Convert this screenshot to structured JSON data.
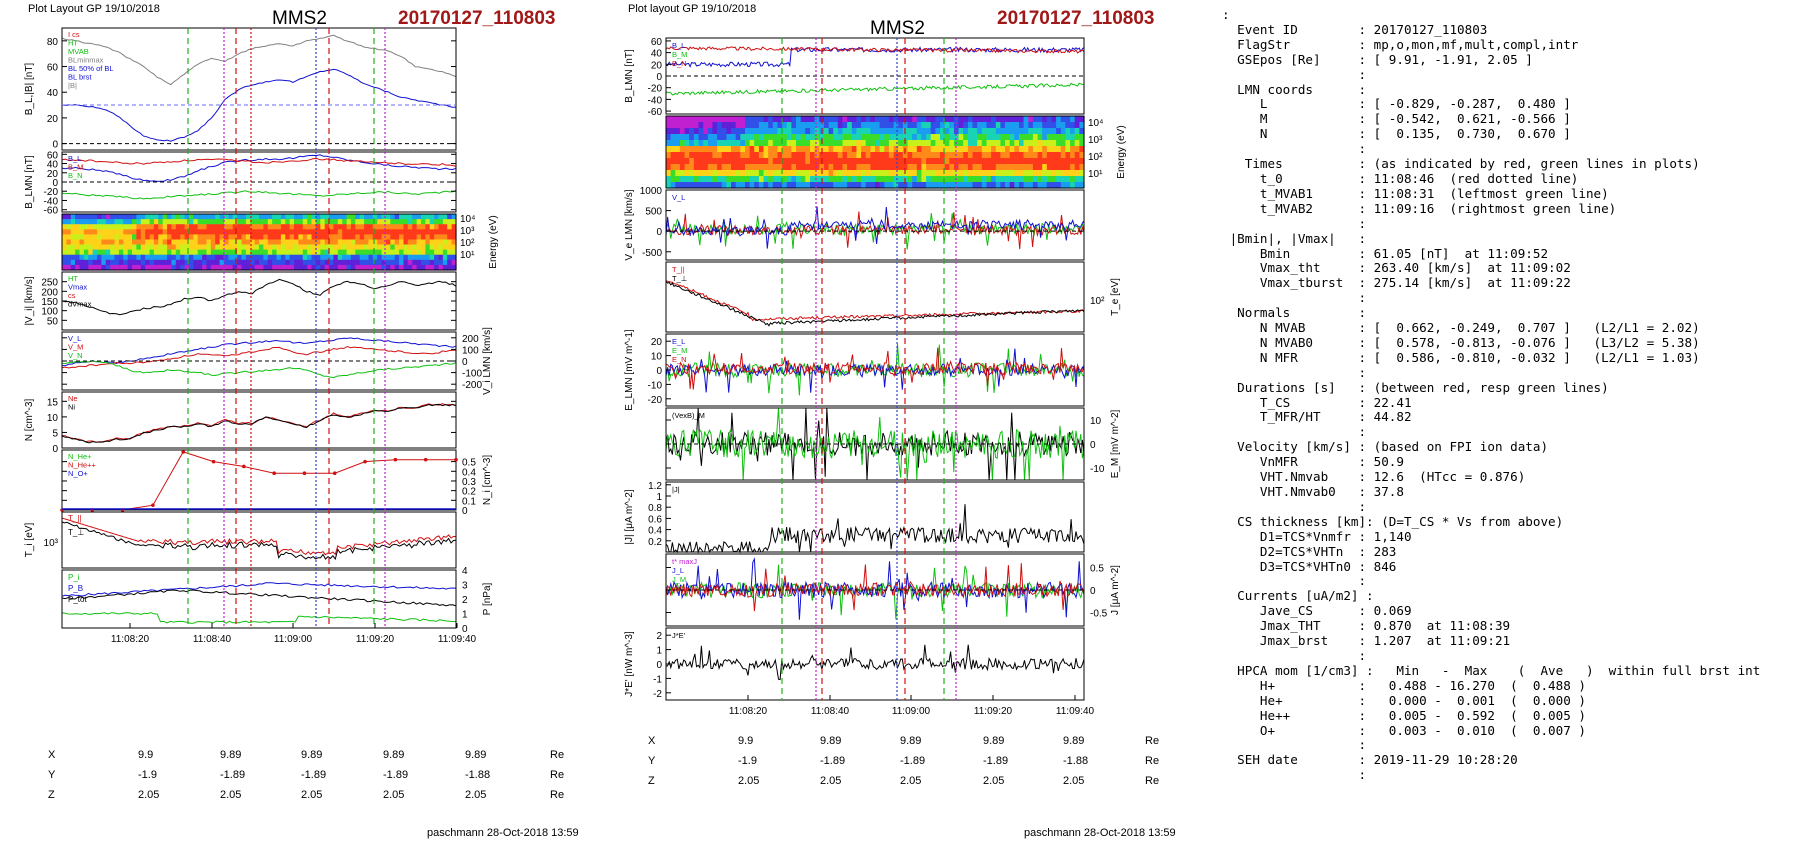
{
  "left": {
    "header_left": "Plot Layout GP 19/10/2018",
    "mms": "MMS2",
    "event": "20170127_110803",
    "footer": "paschmann 28-Oct-2018 13:59",
    "time_ticks": [
      "11:08:20",
      "11:08:40",
      "11:09:00",
      "11:09:20",
      "11:09:40"
    ],
    "coords": {
      "X": [
        "9.9",
        "9.89",
        "9.89",
        "9.89",
        "9.89"
      ],
      "Y": [
        "-1.9",
        "-1.89",
        "-1.89",
        "-1.89",
        "-1.88"
      ],
      "Z": [
        "2.05",
        "2.05",
        "2.05",
        "2.05",
        "2.05"
      ],
      "unit": "Re"
    }
  },
  "right": {
    "header_left": "Plot layout GP 19/10/2018",
    "mms": "MMS2",
    "event": "20170127_110803",
    "footer": "paschmann 28-Oct-2018 13:59",
    "time_ticks": [
      "11:08:20",
      "11:08:40",
      "11:09:00",
      "11:09:20",
      "11:09:40"
    ],
    "coords": {
      "X": [
        "9.9",
        "9.89",
        "9.89",
        "9.89",
        "9.89"
      ],
      "Y": [
        "-1.9",
        "-1.89",
        "-1.89",
        "-1.89",
        "-1.88"
      ],
      "Z": [
        "2.05",
        "2.05",
        "2.05",
        "2.05",
        "2.05"
      ],
      "unit": "Re"
    }
  },
  "info_lines": [
    ":",
    "  Event ID        : 20170127_110803",
    "  FlagStr         : mp,o,mon,mf,mult,compl,intr",
    "  GSEpos [Re]     : [ 9.91, -1.91, 2.05 ]",
    "                  :",
    "  LMN coords      :",
    "     L            : [ -0.829, -0.287,  0.480 ]",
    "     M            : [ -0.542,  0.621, -0.566 ]",
    "     N            : [  0.135,  0.730,  0.670 ]",
    "                  :",
    "   Times          : (as indicated by red, green lines in plots)",
    "     t_0          : 11:08:46  (red dotted line)",
    "     t_MVAB1      : 11:08:31  (leftmost green line)",
    "     t_MVAB2      : 11:09:16  (rightmost green line)",
    "                  :",
    " |Bmin|, |Vmax|   :",
    "     Bmin         : 61.05 [nT]  at 11:09:52",
    "     Vmax_tht     : 263.40 [km/s]  at 11:09:02",
    "     Vmax_tburst  : 275.14 [km/s]  at 11:09:22",
    "                  :",
    "  Normals         :",
    "     N MVAB       : [  0.662, -0.249,  0.707 ]   (L2/L1 = 2.02)",
    "     N MVAB0      : [  0.578, -0.813, -0.076 ]   (L3/L2 = 5.38)",
    "     N MFR        : [  0.586, -0.810, -0.032 ]   (L2/L1 = 1.03)",
    "                  :",
    "  Durations [s]   : (between red, resp green lines)",
    "     T_CS         : 22.41",
    "     T_MFR/HT     : 44.82",
    "                  :",
    "  Velocity [km/s] : (based on FPI ion data)",
    "     VnMFR        : 50.9",
    "     VHT.Nmvab    : 12.6  (HTcc = 0.876)",
    "     VHT.Nmvab0   : 37.8",
    "                  :",
    "  CS thickness [km]: (D=T_CS * Vs from above)",
    "     D1=TCS*Vnmfr : 1,140",
    "     D2=TCS*VHTn  : 283",
    "     D3=TCS*VHTn0 : 846",
    "                  :",
    "  Currents [uA/m2] :",
    "     Jave_CS      : 0.069",
    "     Jmax_THT     : 0.870  at 11:08:39",
    "     Jmax_brst    : 1.207  at 11:09:21",
    "                  :",
    "  HPCA mom [1/cm3] :   Min   -  Max    (  Ave   )  within full brst int",
    "     H+           :   0.488 - 16.270  (  0.488 )",
    "     He+          :   0.000 -  0.001  (  0.000 )",
    "     He++         :   0.005 -  0.592  (  0.005 )",
    "     O+           :   0.003 -  0.010  (  0.007 )",
    "                  :",
    "  SEH date        : 2019-11-29 10:28:20",
    "                  :"
  ],
  "chart_data": [
    {
      "type": "line",
      "figure": "left",
      "panels": [
        {
          "ylabel": "B_L,|B| [nT]",
          "ylim": [
            -5,
            90
          ],
          "yticks": [
            0,
            20,
            40,
            60,
            80
          ],
          "legend": [
            "Ι cs",
            "HT",
            "MVAB",
            "BLminmax",
            "BL 50% of BL",
            "BL brst",
            "|B|"
          ],
          "series": [
            {
              "name": "|B|",
              "color": "#808080",
              "values": [
                82,
                80,
                78,
                76,
                72,
                66,
                60,
                52,
                46,
                54,
                62,
                66,
                64,
                70,
                74,
                76,
                78,
                76,
                80,
                82,
                84,
                80,
                76,
                74,
                72,
                68,
                60,
                58,
                56,
                52
              ]
            },
            {
              "name": "BL brst",
              "color": "#1010d0",
              "values": [
                30,
                30,
                29,
                27,
                22,
                14,
                6,
                3,
                2,
                5,
                10,
                20,
                34,
                42,
                46,
                48,
                50,
                48,
                52,
                56,
                58,
                54,
                48,
                44,
                40,
                36,
                34,
                32,
                30,
                28
              ]
            }
          ]
        },
        {
          "ylabel": "B_LMN [nT]",
          "ylim": [
            -65,
            65
          ],
          "yticks": [
            -60,
            -40,
            -20,
            0,
            20,
            40,
            60
          ],
          "legend": [
            "B_L",
            "B_M",
            "B_N"
          ],
          "series": [
            {
              "name": "B_L",
              "color": "#1010d0",
              "values": [
                30,
                30,
                28,
                24,
                18,
                10,
                4,
                2,
                4,
                12,
                24,
                34,
                42,
                46,
                48,
                50,
                50,
                52,
                56,
                58,
                54,
                48,
                44,
                40,
                36,
                34,
                32,
                30,
                28,
                28
              ]
            },
            {
              "name": "B_M",
              "color": "#d01010",
              "values": [
                48,
                48,
                46,
                44,
                42,
                40,
                40,
                42,
                44,
                46,
                48,
                48,
                48,
                46,
                44,
                42,
                44,
                46,
                48,
                50,
                48,
                46,
                44,
                42,
                42,
                40,
                40,
                38,
                38,
                36
              ]
            },
            {
              "name": "B_N",
              "color": "#10c010",
              "values": [
                -24,
                -26,
                -28,
                -30,
                -32,
                -34,
                -36,
                -34,
                -32,
                -30,
                -28,
                -26,
                -24,
                -22,
                -20,
                -22,
                -24,
                -26,
                -28,
                -30,
                -28,
                -26,
                -24,
                -22,
                -22,
                -24,
                -26,
                -24,
                -22,
                -20
              ]
            }
          ]
        },
        {
          "ylabel": "Energy (eV)",
          "yticks": [
            "10^4",
            "10^3",
            "10^2",
            "10^1"
          ],
          "type": "heatmap",
          "series": []
        },
        {
          "ylabel": "|V_i| [km/s]",
          "ylim": [
            0,
            300
          ],
          "yticks": [
            50,
            100,
            150,
            200,
            250
          ],
          "legend": [
            "HT",
            "Vmax",
            "cs",
            "dVmax"
          ],
          "series": [
            {
              "name": "|V_i|",
              "color": "#000",
              "values": [
                150,
                140,
                120,
                95,
                80,
                90,
                110,
                120,
                130,
                160,
                170,
                150,
                180,
                200,
                190,
                230,
                260,
                240,
                200,
                180,
                230,
                250,
                240,
                210,
                230,
                250,
                230,
                240,
                250,
                230
              ]
            }
          ]
        },
        {
          "ylabel": "V_i LMN [km/s]",
          "ylim": [
            -250,
            250
          ],
          "yticks": [
            -200,
            -100,
            0,
            100,
            200
          ],
          "legend": [
            "V_L",
            "V_M",
            "V_N"
          ],
          "series": [
            {
              "name": "V_L",
              "color": "#1010d0",
              "values": [
                -40,
                -20,
                0,
                -10,
                -20,
                0,
                20,
                40,
                60,
                80,
                100,
                120,
                140,
                150,
                160,
                170,
                180,
                160,
                150,
                170,
                180,
                200,
                190,
                180,
                170,
                160,
                150,
                140,
                130,
                120
              ]
            },
            {
              "name": "V_M",
              "color": "#d01010",
              "values": [
                -60,
                -50,
                -40,
                -30,
                -20,
                -20,
                -10,
                0,
                20,
                40,
                60,
                50,
                40,
                60,
                80,
                100,
                120,
                80,
                60,
                80,
                100,
                120,
                110,
                100,
                90,
                80,
                70,
                60,
                80,
                100
              ]
            },
            {
              "name": "V_N",
              "color": "#10c010",
              "values": [
                -20,
                -10,
                0,
                -10,
                -40,
                -80,
                -100,
                -90,
                -80,
                -90,
                -100,
                -120,
                -110,
                -100,
                -90,
                -80,
                -70,
                -60,
                -80,
                -120,
                -140,
                -120,
                -100,
                -80,
                -70,
                -60,
                -50,
                -40,
                -30,
                -20
              ]
            }
          ]
        },
        {
          "ylabel": "N [cm^-3]",
          "ylim": [
            0,
            18
          ],
          "yticks": [
            0,
            5,
            10,
            15
          ],
          "legend": [
            "Ne",
            "Ni"
          ],
          "series": [
            {
              "name": "Ne",
              "color": "#d01010",
              "values": [
                4,
                3,
                2,
                2,
                3,
                3,
                5,
                6,
                7,
                7,
                8,
                7,
                9,
                8,
                8,
                10,
                9,
                8,
                7,
                9,
                11,
                10,
                11,
                12,
                12,
                13,
                13,
                14,
                14,
                14
              ]
            },
            {
              "name": "Ni",
              "color": "#000",
              "values": [
                3.8,
                2.8,
                1.8,
                1.8,
                2.8,
                2.8,
                4.8,
                5.8,
                6.8,
                6.8,
                7.8,
                6.8,
                8.8,
                7.8,
                7.8,
                9.8,
                8.8,
                7.8,
                6.8,
                8.8,
                10.8,
                9.8,
                10.8,
                11.8,
                11.8,
                12.8,
                12.8,
                13.8,
                13.8,
                13.8
              ]
            }
          ]
        },
        {
          "ylabel": "N_i [cm^-3]",
          "ylim": [
            0,
            0.62
          ],
          "yticks": [
            0.0,
            0.1,
            0.2,
            0.3,
            0.4,
            0.5
          ],
          "legend": [
            "N_He+",
            "N_He++",
            "N_O+"
          ],
          "series": [
            {
              "name": "N_He++",
              "color": "#d01010",
              "values": [
                0.0,
                0.0,
                0.0,
                0.05,
                0.6,
                0.5,
                0.45,
                0.38,
                0.38,
                0.38,
                0.5,
                0.52,
                0.52,
                0.52
              ]
            }
          ]
        },
        {
          "ylabel": "T_i [eV]",
          "ytick_label": "10^3",
          "legend": [
            "T_||",
            "T_⊥"
          ],
          "series": [
            {
              "name": "T_||",
              "color": "#d01010",
              "values": []
            },
            {
              "name": "T_⊥",
              "color": "#000",
              "values": []
            }
          ]
        },
        {
          "ylabel": "P [nPa]",
          "ylim": [
            0,
            4
          ],
          "yticks": [
            0,
            1,
            2,
            3,
            4
          ],
          "legend": [
            "P_i",
            "P_B",
            "P_tot"
          ],
          "series": [
            {
              "name": "P_i",
              "color": "#10c010",
              "values": []
            },
            {
              "name": "P_B",
              "color": "#1010d0",
              "values": []
            },
            {
              "name": "P_tot",
              "color": "#000",
              "values": []
            }
          ]
        }
      ],
      "xticks": [
        "11:08:20",
        "11:08:40",
        "11:09:00",
        "11:09:20",
        "11:09:40"
      ]
    },
    {
      "type": "line",
      "figure": "right",
      "panels": [
        {
          "ylabel": "B_LMN [nT]",
          "ylim": [
            -65,
            65
          ],
          "yticks": [
            -60,
            -40,
            -20,
            0,
            20,
            40,
            60
          ],
          "legend": [
            "B_L",
            "B_M",
            "B_N"
          ]
        },
        {
          "ylabel": "Energy (eV)",
          "yticks": [
            "10^4",
            "10^3",
            "10^2",
            "10^1"
          ],
          "type": "heatmap"
        },
        {
          "ylabel": "V_e LMN [km/s]",
          "ylim": [
            -700,
            1000
          ],
          "yticks": [
            -500,
            0,
            500,
            1000
          ],
          "legend": [
            "V_L"
          ]
        },
        {
          "ylabel": "T_e [eV]",
          "ytick_label": "10^2",
          "legend": [
            "T_||",
            "T_⊥"
          ]
        },
        {
          "ylabel": "E_LMN [mV m^-1]",
          "ylim": [
            -25,
            25
          ],
          "yticks": [
            -20,
            -10,
            0,
            10,
            20
          ],
          "legend": [
            "E_L",
            "E_M",
            "E_N"
          ]
        },
        {
          "ylabel": "E_M [mV m^-2]",
          "ylim": [
            -15,
            15
          ],
          "yticks": [
            -10,
            0,
            10
          ],
          "legend": [
            "(VexB)_M"
          ]
        },
        {
          "ylabel": "|J| [μA m^-2]",
          "ylim": [
            0,
            1.25
          ],
          "yticks": [
            0.2,
            0.4,
            0.6,
            0.8,
            1.0,
            1.2
          ],
          "legend": [
            "|J|"
          ]
        },
        {
          "ylabel": "J [μA m^-2]",
          "ylim": [
            -0.8,
            0.8
          ],
          "yticks": [
            -0.5,
            0.0,
            0.5
          ],
          "legend": [
            "t* maxJ",
            "J_L",
            "J_M"
          ]
        },
        {
          "ylabel": "J*E' [nW m^-3]",
          "ylim": [
            -2.5,
            2.5
          ],
          "yticks": [
            -2,
            -1,
            0,
            1,
            2
          ],
          "legend": [
            "J*E'"
          ]
        }
      ],
      "xticks": [
        "11:08:20",
        "11:08:40",
        "11:09:00",
        "11:09:20",
        "11:09:40"
      ]
    }
  ]
}
